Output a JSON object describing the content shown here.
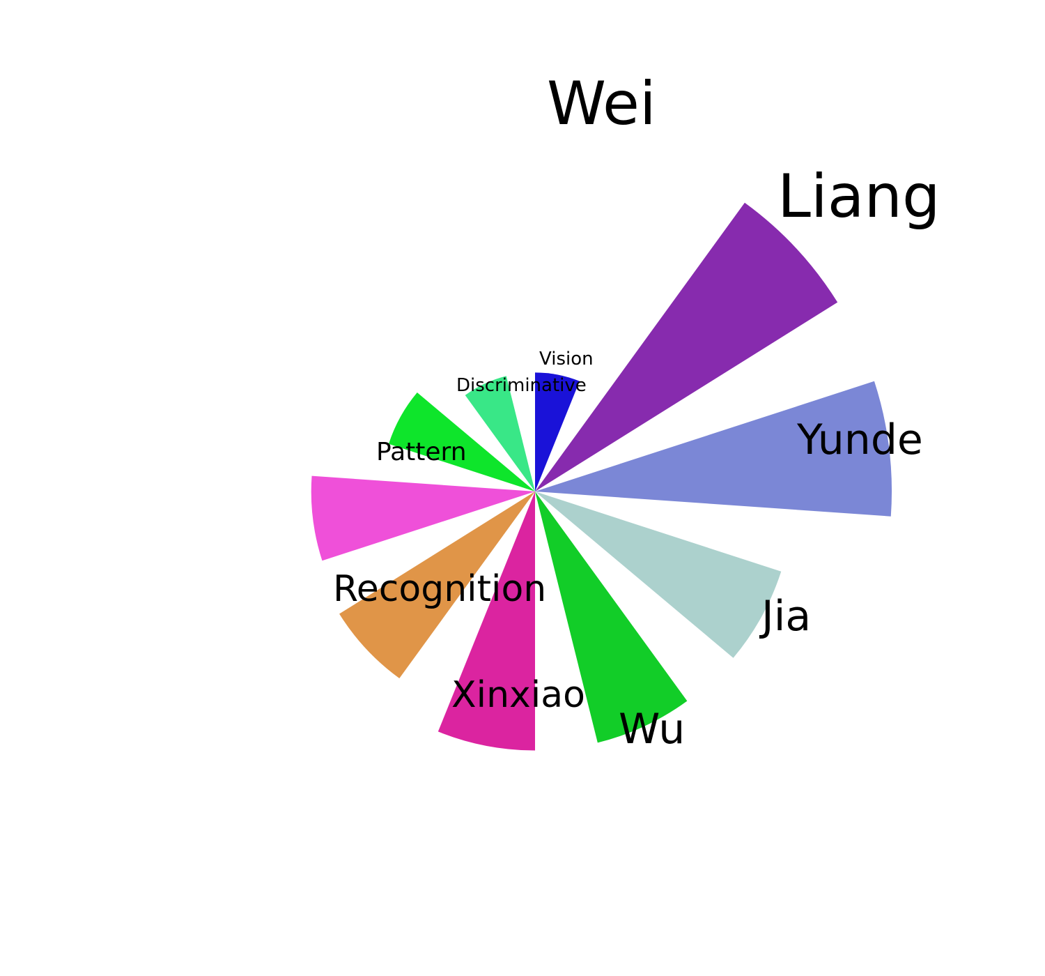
{
  "chart_data": {
    "type": "rose",
    "title": "",
    "categories": [
      "Vision",
      "Wei",
      "Liang",
      "Yunde",
      "Jia",
      "Wu",
      "Xinxiao",
      "Recognition",
      "Pattern",
      "Discriminative"
    ],
    "values": [
      170,
      510,
      510,
      370,
      370,
      370,
      330,
      320,
      220,
      170
    ],
    "colors": [
      "#1a12d8",
      "#872bae",
      "#7b87d6",
      "#acd1cd",
      "#12cd28",
      "#db24a0",
      "#e09548",
      "#ef50d9",
      "#0ee52b",
      "#39e787"
    ],
    "rlim": [
      0,
      510
    ],
    "grid": false,
    "legend": "none"
  }
}
